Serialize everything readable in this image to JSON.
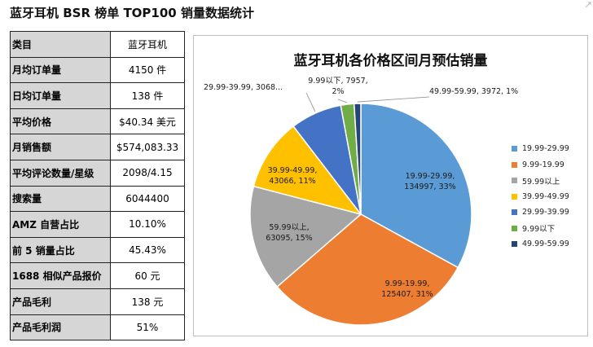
{
  "page": {
    "title": "蓝牙耳机 BSR 榜单 TOP100 销量数据统计"
  },
  "stats": [
    {
      "key": "类目",
      "value": "蓝牙耳机"
    },
    {
      "key": "月均订单量",
      "value": "4150 件"
    },
    {
      "key": "日均订单量",
      "value": "138 件"
    },
    {
      "key": "平均价格",
      "value": "$40.34 美元"
    },
    {
      "key": "月销售额",
      "value": "$574,083.33"
    },
    {
      "key": "平均评论数量/星级",
      "value": "2098/4.15"
    },
    {
      "key": "搜索量",
      "value": "6044400"
    },
    {
      "key": "AMZ 自营占比",
      "value": "10.10%"
    },
    {
      "key": "前 5 销量占比",
      "value": "45.43%"
    },
    {
      "key": "1688 相似产品报价",
      "value": "60 元"
    },
    {
      "key": "产品毛利",
      "value": "138 元"
    },
    {
      "key": "产品毛利润",
      "value": "51%"
    }
  ],
  "chart_data": {
    "type": "pie",
    "title": "蓝牙耳机各价格区间月预估销量",
    "legend_position": "right",
    "slices": [
      {
        "label": "19.99-29.99",
        "value": 134997,
        "percent": "33%",
        "color": "#5b9bd5",
        "data_label": [
          "19.99-29.99,",
          "134997, 33%"
        ]
      },
      {
        "label": "9.99-19.99",
        "value": 125407,
        "percent": "31%",
        "color": "#ed7d31",
        "data_label": [
          "9.99-19.99,",
          "125407, 31%"
        ]
      },
      {
        "label": "59.99以上",
        "value": 63095,
        "percent": "15%",
        "color": "#a5a5a5",
        "data_label": [
          "59.99以上,",
          "63095, 15%"
        ]
      },
      {
        "label": "39.99-49.99",
        "value": 43066,
        "percent": "11%",
        "color": "#ffc000",
        "data_label": [
          "39.99-49.99,",
          "43066, 11%"
        ]
      },
      {
        "label": "29.99-39.99",
        "value": 30684,
        "percent": "8%",
        "color": "#4472c4",
        "data_label": [
          "29.99-39.99, 3068..."
        ]
      },
      {
        "label": "9.99以下",
        "value": 7957,
        "percent": "2%",
        "color": "#70ad47",
        "data_label": [
          "9.99以下, 7957,",
          "2%"
        ]
      },
      {
        "label": "49.99-59.99",
        "value": 3972,
        "percent": "1%",
        "color": "#264478",
        "data_label": [
          "49.99-59.99, 3972, 1%"
        ]
      }
    ]
  }
}
